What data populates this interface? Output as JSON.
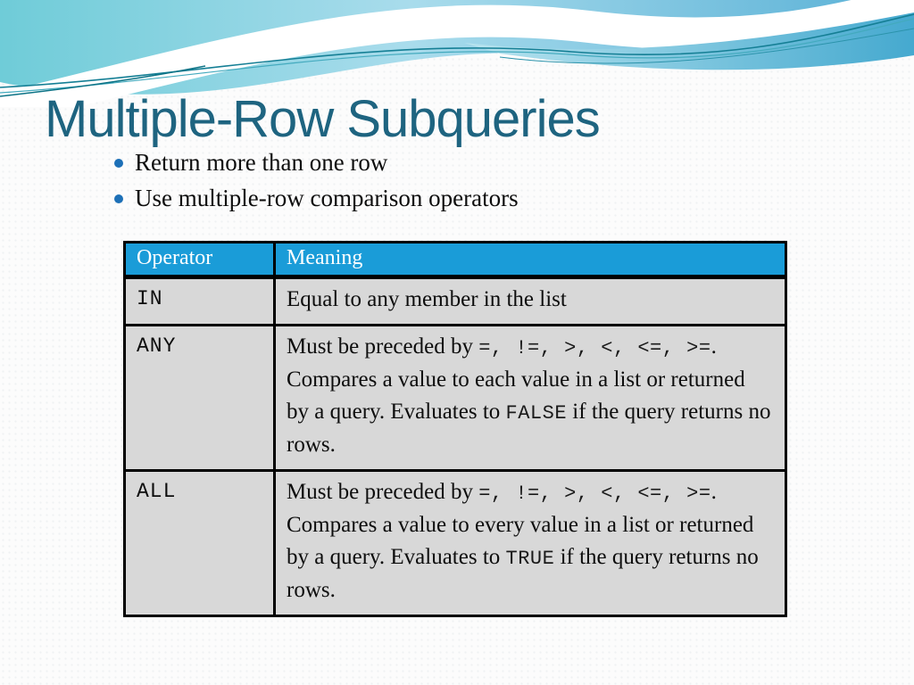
{
  "slide": {
    "title": "Multiple-Row Subqueries",
    "bullets": [
      "Return more than one row",
      "Use multiple-row comparison operators"
    ]
  },
  "table": {
    "headers": [
      "Operator",
      "Meaning"
    ],
    "rows": [
      {
        "operator": "IN",
        "segments": [
          {
            "text": "Equal to any member in the list",
            "mono": false
          }
        ]
      },
      {
        "operator": "ANY",
        "segments": [
          {
            "text": "Must be preceded by ",
            "mono": false
          },
          {
            "text": "=, !=, >, <, <=, >=",
            "mono": true
          },
          {
            "text": ". Compares a value to each value in a list or returned by a query. Evaluates to ",
            "mono": false
          },
          {
            "text": "FALSE",
            "mono": true
          },
          {
            "text": " if the query returns no rows.",
            "mono": false
          }
        ]
      },
      {
        "operator": "ALL",
        "segments": [
          {
            "text": "Must be preceded by ",
            "mono": false
          },
          {
            "text": "=, !=, >, <, <=, >=",
            "mono": true
          },
          {
            "text": ". Compares a value to every value in a list or returned by a query. Evaluates to ",
            "mono": false
          },
          {
            "text": "TRUE",
            "mono": true
          },
          {
            "text": " if the query returns no rows.",
            "mono": false
          }
        ]
      }
    ]
  },
  "colors": {
    "title_text": "#1e6480",
    "table_header_bg": "#1a9cd8",
    "table_header_text": "#ffffff",
    "table_cell_bg": "#d8d8d8",
    "table_border": "#000000",
    "bullet_dot": "#1d70b7",
    "wave_teal": "#5ecfd6",
    "wave_blue": "#55b0d8"
  }
}
